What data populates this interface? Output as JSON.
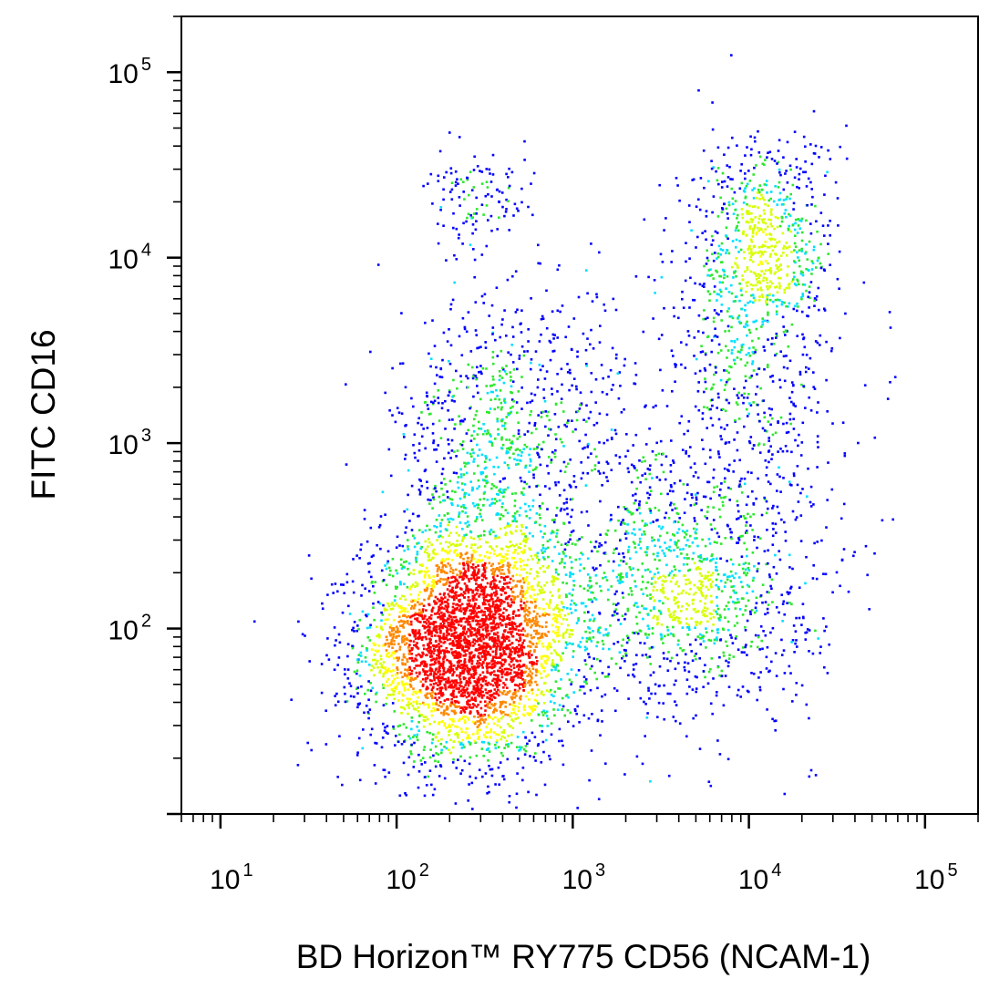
{
  "chart_data": {
    "type": "scatter",
    "title": "",
    "xlabel": "BD Horizon™ RY775 CD56 (NCAM-1)",
    "ylabel": "FITC  CD16",
    "x_scale": "log",
    "y_scale": "log",
    "xlim": [
      6,
      200000
    ],
    "ylim": [
      10,
      200000
    ],
    "x_ticks": [
      {
        "base": "10",
        "exp": "1",
        "value": 10
      },
      {
        "base": "10",
        "exp": "2",
        "value": 100
      },
      {
        "base": "10",
        "exp": "3",
        "value": 1000
      },
      {
        "base": "10",
        "exp": "4",
        "value": 10000
      },
      {
        "base": "10",
        "exp": "5",
        "value": 100000
      }
    ],
    "y_ticks": [
      {
        "base": "10",
        "exp": "2",
        "value": 100
      },
      {
        "base": "10",
        "exp": "3",
        "value": 1000
      },
      {
        "base": "10",
        "exp": "4",
        "value": 10000
      },
      {
        "base": "10",
        "exp": "5",
        "value": 100000
      }
    ],
    "grid": false,
    "density_colors": [
      "#0000ff",
      "#00e0ff",
      "#2ee82e",
      "#d7ff00",
      "#ffff00",
      "#ff8800",
      "#ff0000"
    ],
    "populations": [
      {
        "x": 250,
        "y": 80,
        "x_spread_decades": 0.3,
        "y_spread_decades": 0.3,
        "count": 3600
      },
      {
        "x": 300,
        "y": 600,
        "x_spread_decades": 0.25,
        "y_spread_decades": 0.45,
        "count": 700
      },
      {
        "x": 3000,
        "y": 200,
        "x_spread_decades": 0.45,
        "y_spread_decades": 0.4,
        "count": 1100
      },
      {
        "x": 12000,
        "y": 12000,
        "x_spread_decades": 0.2,
        "y_spread_decades": 0.3,
        "count": 650
      },
      {
        "x": 10000,
        "y": 2500,
        "x_spread_decades": 0.25,
        "y_spread_decades": 0.45,
        "count": 500
      },
      {
        "x": 300,
        "y": 20000,
        "x_spread_decades": 0.15,
        "y_spread_decades": 0.12,
        "count": 120
      },
      {
        "x": 700,
        "y": 2000,
        "x_spread_decades": 0.35,
        "y_spread_decades": 0.35,
        "count": 350
      },
      {
        "x": 6000,
        "y": 150,
        "x_spread_decades": 0.3,
        "y_spread_decades": 0.3,
        "count": 350
      }
    ],
    "point_count_note_hidden": true
  }
}
